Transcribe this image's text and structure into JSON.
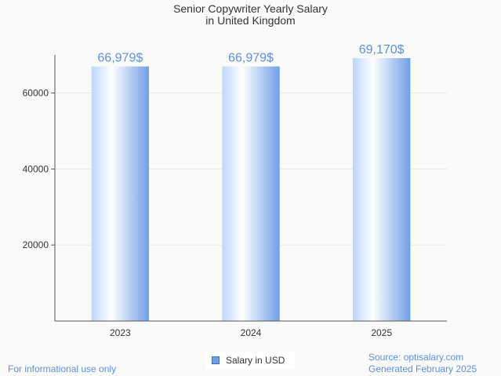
{
  "chart_data": {
    "type": "bar",
    "title_lines": [
      "Senior Copywriter Yearly Salary",
      "in United Kingdom"
    ],
    "categories": [
      "2023",
      "2024",
      "2025"
    ],
    "series": [
      {
        "name": "Salary in USD",
        "values": [
          66979,
          66979,
          69170
        ],
        "labels": [
          "66,979$",
          "66,979$",
          "69,170$"
        ]
      }
    ],
    "ylim": [
      0,
      70000
    ],
    "yticks": [
      20000,
      40000,
      60000
    ],
    "ytick_labels": [
      "20000",
      "40000",
      "60000"
    ],
    "grid": true,
    "legend_position": "bottom-center",
    "colors": {
      "bar_light": "#ffffff",
      "bar_mid": "#bcd6ff",
      "bar_dark": "#6f9fe6",
      "label": "#5b8fe0",
      "grid": "#e6e6e6",
      "axis": "#555555"
    }
  },
  "footer": {
    "note": "For informational use only",
    "source": "Source: optisalary.com",
    "generated": "Generated February 2025"
  }
}
